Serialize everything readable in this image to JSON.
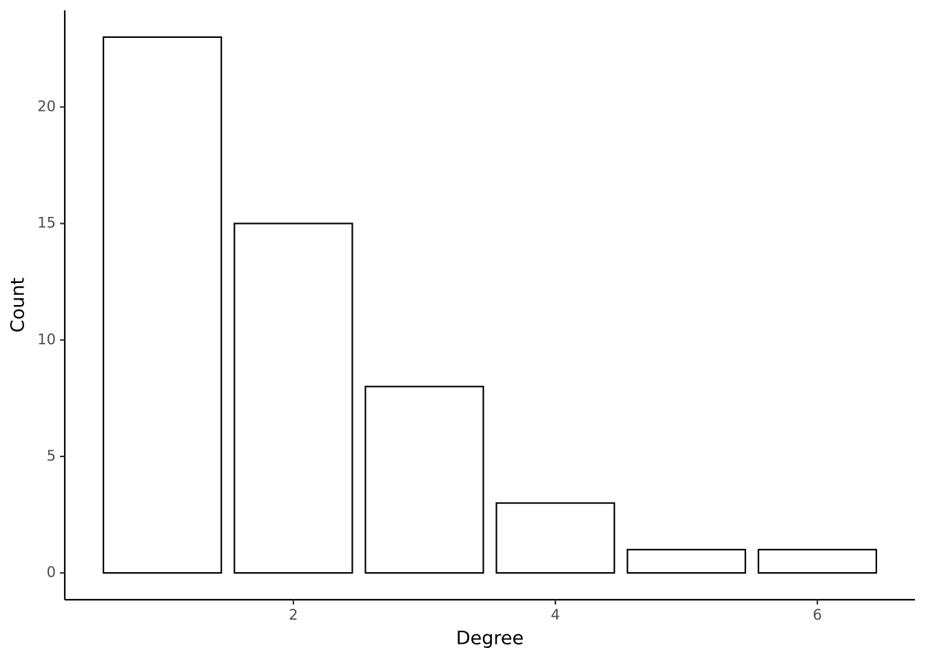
{
  "chart_data": {
    "type": "bar",
    "x_label": "Degree",
    "y_label": "Count",
    "x": [
      1,
      2,
      3,
      4,
      5,
      6
    ],
    "values": [
      23,
      15,
      8,
      3,
      1,
      1
    ],
    "color": "#ffffff",
    "edge_color": "#000000",
    "xlim": [
      0.255,
      6.745
    ],
    "xticks": [
      2,
      4,
      6
    ],
    "ylim": [
      -1.15,
      24.15
    ],
    "yticks": [
      0,
      5,
      10,
      15,
      20
    ],
    "grid": false
  }
}
